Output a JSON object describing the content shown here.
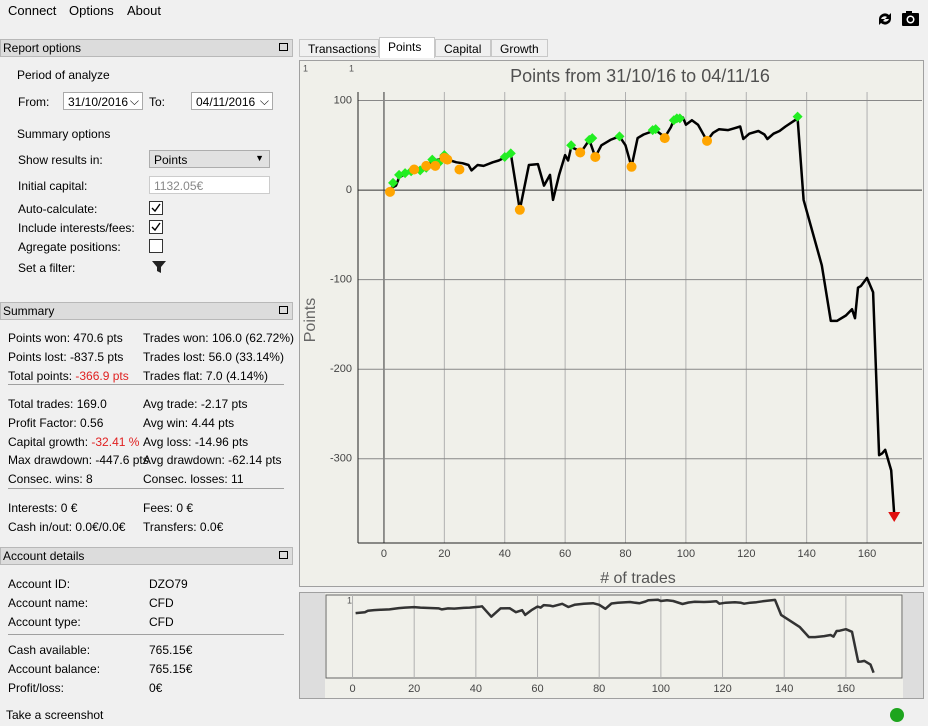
{
  "menu": [
    "Connect",
    "Options",
    "About"
  ],
  "report_options": {
    "title": "Report options",
    "period_label": "Period of analyze",
    "from_label": "From:",
    "from_date": "31/10/2016",
    "to_label": "To:",
    "to_date": "04/11/2016",
    "summary_options_label": "Summary options",
    "show_results_label": "Show results in:",
    "show_results_value": "Points",
    "initial_capital_label": "Initial capital:",
    "initial_capital_value": "1132.05€",
    "checkboxes": [
      {
        "label": "Auto-calculate:",
        "checked": true
      },
      {
        "label": "Include interests/fees:",
        "checked": true
      },
      {
        "label": "Agregate positions:",
        "checked": false
      }
    ],
    "filter_label": "Set a filter:"
  },
  "summary": {
    "title": "Summary",
    "groups": [
      [
        [
          {
            "label": "Points won:",
            "value": "470.6 pts"
          },
          {
            "label": "Trades won:",
            "value": "106.0 (62.72%)"
          }
        ],
        [
          {
            "label": "Points lost:",
            "value": "-837.5 pts"
          },
          {
            "label": "Trades lost:",
            "value": "56.0 (33.14%)"
          }
        ],
        [
          {
            "label": "Total points:",
            "value": "-366.9 pts",
            "color": "#e02020"
          },
          {
            "label": "Trades flat:",
            "value": "7.0 (4.14%)"
          }
        ]
      ],
      [
        [
          {
            "label": "Total trades:",
            "value": "169.0"
          },
          {
            "label": "Avg trade:",
            "value": "-2.17 pts"
          }
        ],
        [
          {
            "label": "Profit Factor:",
            "value": "0.56"
          },
          {
            "label": "Avg win:",
            "value": "4.44 pts"
          }
        ],
        [
          {
            "label": "Capital growth:",
            "value": "-32.41 %",
            "color": "#e02020"
          },
          {
            "label": "Avg loss:",
            "value": "-14.96 pts"
          }
        ],
        [
          {
            "label": "Max drawdown:",
            "value": "-447.6 pts"
          },
          {
            "label": "Avg drawdown:",
            "value": "-62.14 pts"
          }
        ],
        [
          {
            "label": "Consec. wins:",
            "value": "8"
          },
          {
            "label": "Consec. losses:",
            "value": "11"
          }
        ]
      ],
      [
        [
          {
            "label": "Interests:",
            "value": "0 €"
          },
          {
            "label": "Fees:",
            "value": "0 €"
          }
        ],
        [
          {
            "label": "Cash in/out:",
            "value": "0.0€/0.0€"
          },
          {
            "label": "Transfers:",
            "value": "0.0€"
          }
        ]
      ]
    ]
  },
  "account": {
    "title": "Account details",
    "groups": [
      [
        {
          "label": "Account ID:",
          "value": "DZO79"
        },
        {
          "label": "Account name:",
          "value": "CFD"
        },
        {
          "label": "Account type:",
          "value": "CFD"
        }
      ],
      [
        {
          "label": "Cash available:",
          "value": "765.15€"
        },
        {
          "label": "Account balance:",
          "value": "765.15€"
        },
        {
          "label": "Profit/loss:",
          "value": "0€"
        }
      ]
    ]
  },
  "tabs": {
    "items": [
      "Transactions",
      "Points",
      "Capital",
      "Growth"
    ],
    "active": 1
  },
  "status": "Take a screenshot",
  "chart_data": {
    "type": "line",
    "title": "Points from 31/10/16 to 04/11/16",
    "xlabel": "# of trades",
    "ylabel": "Points",
    "corner_label": "1",
    "color": "#000000",
    "grid": true,
    "xlim": [
      -8.6,
      178.2
    ],
    "ylim": [
      -394,
      109.5
    ],
    "xticks": [
      0,
      20,
      40,
      60,
      80,
      100,
      120,
      140,
      160
    ],
    "yticks": [
      -300,
      -200,
      -100,
      0,
      100
    ],
    "x": [
      1,
      4,
      5,
      7,
      9,
      12,
      15,
      17,
      20,
      22,
      24,
      26,
      28,
      29,
      31,
      33,
      36,
      38,
      41,
      42,
      45,
      48,
      51,
      53,
      55,
      56,
      58,
      60,
      61,
      62,
      64,
      65,
      68,
      70,
      72,
      75,
      78,
      80,
      82,
      84,
      86,
      90,
      93,
      95,
      96,
      99,
      100,
      102,
      104,
      107,
      109,
      111,
      114,
      116,
      118,
      119,
      121,
      124,
      126,
      127,
      129,
      131,
      133,
      137,
      139,
      145,
      148,
      150,
      153,
      155,
      156,
      157,
      158,
      160,
      162,
      164,
      165,
      166,
      168,
      169
    ],
    "values": [
      0,
      5,
      14,
      18,
      20,
      22,
      30,
      33,
      36,
      33,
      31,
      30,
      28,
      22,
      28,
      27,
      31,
      33,
      38,
      41,
      -22,
      28,
      29,
      5,
      17,
      -11,
      17,
      39,
      33,
      48,
      45,
      41,
      56,
      37,
      50,
      56,
      60,
      50,
      26,
      58,
      62,
      67,
      59,
      70,
      78,
      81,
      73,
      78,
      73,
      55,
      64,
      68,
      67,
      69,
      71,
      57,
      63,
      66,
      62,
      57,
      63,
      66,
      71,
      80,
      -11,
      -84,
      -146,
      -146,
      -140,
      -133,
      -143,
      -109,
      -107,
      -98,
      -114,
      -296,
      -294,
      -290,
      -313,
      -362
    ],
    "markers": [
      {
        "shape": "diamond",
        "color": "#22ee22",
        "x": [
          3,
          5,
          7,
          9,
          12,
          14,
          16,
          18,
          20,
          40,
          42,
          62,
          68,
          69,
          78,
          89,
          90,
          96,
          97,
          98,
          137
        ],
        "values": [
          8,
          17,
          19,
          21,
          22,
          25,
          34,
          30,
          39,
          37,
          41,
          50,
          56,
          58,
          60,
          67,
          68,
          78,
          80,
          80,
          82
        ]
      },
      {
        "shape": "circle",
        "color": "#ffa500",
        "x": [
          2,
          10,
          14,
          17,
          20,
          21,
          25,
          45,
          65,
          70,
          82,
          93,
          107
        ],
        "values": [
          -2,
          23,
          27,
          27,
          36,
          34,
          23,
          -22,
          42,
          37,
          26,
          58,
          55
        ]
      },
      {
        "shape": "triangle",
        "color": "#e01010",
        "x": [
          169
        ],
        "values": [
          -365
        ]
      }
    ]
  }
}
